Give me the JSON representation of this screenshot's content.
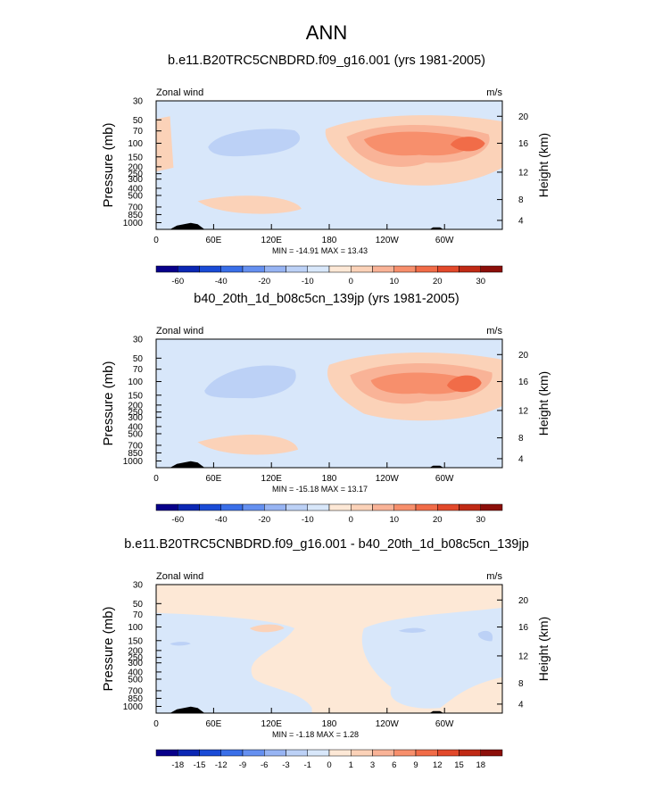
{
  "page": {
    "main_title": "ANN"
  },
  "chart_data": [
    {
      "type": "heatmap",
      "title": "b.e11.B20TRC5CNBDRD.f09_g16.001 (yrs 1981-2005)",
      "left_label": "Zonal wind",
      "right_label": "m/s",
      "ylabel": "Pressure (mb)",
      "ylabel_right": "Height (km)",
      "x_ticks": [
        "0",
        "60E",
        "120E",
        "180",
        "120W",
        "60W"
      ],
      "y_ticks": [
        "30",
        "50",
        "70",
        "100",
        "150",
        "200",
        "250",
        "300",
        "400",
        "500",
        "700",
        "850",
        "1000"
      ],
      "height_ticks": [
        "20",
        "16",
        "12",
        "8",
        "4"
      ],
      "stats": "MIN = -14.91   MAX =  13.43",
      "colorbar": {
        "labels": [
          "-60",
          "-40",
          "-20",
          "-10",
          "0",
          "10",
          "20",
          "30"
        ],
        "colors": [
          "#08008a",
          "#0b27b4",
          "#1a4bd6",
          "#3a6fe8",
          "#6590f0",
          "#97b4f3",
          "#bcd1f6",
          "#d8e7fa",
          "#fde8d6",
          "#fbd2b8",
          "#f9b397",
          "#f78f6c",
          "#f16c48",
          "#e2492b",
          "#c02a15",
          "#8c0f0a"
        ]
      }
    },
    {
      "type": "heatmap",
      "title": "b40_20th_1d_b08c5cn_139jp (yrs 1981-2005)",
      "left_label": "Zonal wind",
      "right_label": "m/s",
      "ylabel": "Pressure (mb)",
      "ylabel_right": "Height (km)",
      "x_ticks": [
        "0",
        "60E",
        "120E",
        "180",
        "120W",
        "60W"
      ],
      "y_ticks": [
        "30",
        "50",
        "70",
        "100",
        "150",
        "200",
        "250",
        "300",
        "400",
        "500",
        "700",
        "850",
        "1000"
      ],
      "height_ticks": [
        "20",
        "16",
        "12",
        "8",
        "4"
      ],
      "stats": "MIN = -15.18   MAX =  13.17",
      "colorbar": {
        "labels": [
          "-60",
          "-40",
          "-20",
          "-10",
          "0",
          "10",
          "20",
          "30"
        ],
        "colors": [
          "#08008a",
          "#0b27b4",
          "#1a4bd6",
          "#3a6fe8",
          "#6590f0",
          "#97b4f3",
          "#bcd1f6",
          "#d8e7fa",
          "#fde8d6",
          "#fbd2b8",
          "#f9b397",
          "#f78f6c",
          "#f16c48",
          "#e2492b",
          "#c02a15",
          "#8c0f0a"
        ]
      }
    },
    {
      "type": "heatmap",
      "title": "b.e11.B20TRC5CNBDRD.f09_g16.001 - b40_20th_1d_b08c5cn_139jp",
      "left_label": "Zonal wind",
      "right_label": "m/s",
      "ylabel": "Pressure (mb)",
      "ylabel_right": "Height (km)",
      "x_ticks": [
        "0",
        "60E",
        "120E",
        "180",
        "120W",
        "60W"
      ],
      "y_ticks": [
        "30",
        "50",
        "70",
        "100",
        "150",
        "200",
        "250",
        "300",
        "400",
        "500",
        "700",
        "850",
        "1000"
      ],
      "height_ticks": [
        "20",
        "16",
        "12",
        "8",
        "4"
      ],
      "stats": "MIN = -1.18   MAX =  1.28",
      "colorbar": {
        "labels": [
          "-18",
          "-15",
          "-12",
          "-9",
          "-6",
          "-3",
          "-1",
          "0",
          "1",
          "3",
          "6",
          "9",
          "12",
          "15",
          "18"
        ],
        "colors": [
          "#08008a",
          "#0b27b4",
          "#1a4bd6",
          "#3a6fe8",
          "#6590f0",
          "#97b4f3",
          "#bcd1f6",
          "#d8e7fa",
          "#fde8d6",
          "#fbd2b8",
          "#f9b397",
          "#f78f6c",
          "#f16c48",
          "#e2492b",
          "#c02a15",
          "#8c0f0a"
        ]
      }
    }
  ]
}
